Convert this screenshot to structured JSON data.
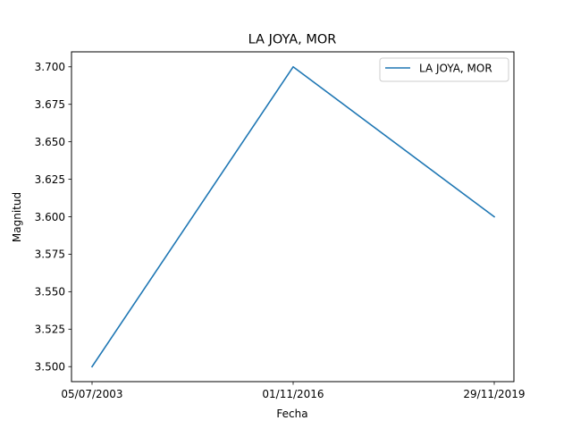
{
  "chart_data": {
    "type": "line",
    "title": "LA JOYA, MOR",
    "xlabel": "Fecha",
    "ylabel": "Magnitud",
    "categories": [
      "05/07/2003",
      "01/11/2016",
      "29/11/2019"
    ],
    "series": [
      {
        "name": "LA JOYA, MOR",
        "values": [
          3.5,
          3.7,
          3.6
        ],
        "color": "#1f77b4"
      }
    ],
    "ylim": [
      3.49,
      3.71
    ],
    "yticks": [
      "3.500",
      "3.525",
      "3.550",
      "3.575",
      "3.600",
      "3.625",
      "3.650",
      "3.675",
      "3.700"
    ],
    "legend": "top-right",
    "grid": false
  }
}
